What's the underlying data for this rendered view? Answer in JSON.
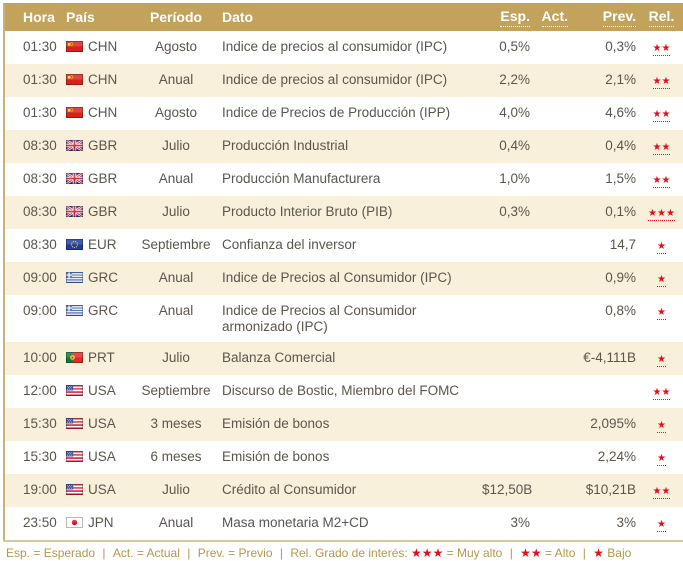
{
  "table": {
    "columns": {
      "hora": "Hora",
      "pais": "País",
      "periodo": "Período",
      "dato": "Dato",
      "esp": "Esp.",
      "act": "Act.",
      "prev": "Prev.",
      "rel": "Rel."
    },
    "rows": [
      {
        "hora": "01:30",
        "pais": "CHN",
        "flag": "china-flag",
        "periodo": "Agosto",
        "dato": "Indice de precios al consumidor (IPC)",
        "esp": "0,5%",
        "act": "",
        "prev": "0,3%",
        "rel": 2
      },
      {
        "hora": "01:30",
        "pais": "CHN",
        "flag": "china-flag",
        "periodo": "Anual",
        "dato": "Indice de precios al consumidor (IPC)",
        "esp": "2,2%",
        "act": "",
        "prev": "2,1%",
        "rel": 2
      },
      {
        "hora": "01:30",
        "pais": "CHN",
        "flag": "china-flag",
        "periodo": "Agosto",
        "dato": "Indice de Precios de Producción (IPP)",
        "esp": "4,0%",
        "act": "",
        "prev": "4,6%",
        "rel": 2
      },
      {
        "hora": "08:30",
        "pais": "GBR",
        "flag": "uk-flag",
        "periodo": "Julio",
        "dato": "Producción Industrial",
        "esp": "0,4%",
        "act": "",
        "prev": "0,4%",
        "rel": 2
      },
      {
        "hora": "08:30",
        "pais": "GBR",
        "flag": "uk-flag",
        "periodo": "Anual",
        "dato": "Producción Manufacturera",
        "esp": "1,0%",
        "act": "",
        "prev": "1,5%",
        "rel": 2
      },
      {
        "hora": "08:30",
        "pais": "GBR",
        "flag": "uk-flag",
        "periodo": "Julio",
        "dato": "Producto Interior Bruto (PIB)",
        "esp": "0,3%",
        "act": "",
        "prev": "0,1%",
        "rel": 3
      },
      {
        "hora": "08:30",
        "pais": "EUR",
        "flag": "eu-flag",
        "periodo": "Septiembre",
        "dato": "Confianza del inversor",
        "esp": "",
        "act": "",
        "prev": "14,7",
        "rel": 1
      },
      {
        "hora": "09:00",
        "pais": "GRC",
        "flag": "greece-flag",
        "periodo": "Anual",
        "dato": "Indice de Precios al Consumidor (IPC)",
        "esp": "",
        "act": "",
        "prev": "0,9%",
        "rel": 1
      },
      {
        "hora": "09:00",
        "pais": "GRC",
        "flag": "greece-flag",
        "periodo": "Anual",
        "dato": "Indice de Precios al Consumidor armonizado (IPC)",
        "esp": "",
        "act": "",
        "prev": "0,8%",
        "rel": 1
      },
      {
        "hora": "10:00",
        "pais": "PRT",
        "flag": "portugal-flag",
        "periodo": "Julio",
        "dato": "Balanza Comercial",
        "esp": "",
        "act": "",
        "prev": "€-4,111B",
        "rel": 1
      },
      {
        "hora": "12:00",
        "pais": "USA",
        "flag": "usa-flag",
        "periodo": "Septiembre",
        "dato": "Discurso de Bostic, Miembro del FOMC",
        "esp": "",
        "act": "",
        "prev": "",
        "rel": 2
      },
      {
        "hora": "15:30",
        "pais": "USA",
        "flag": "usa-flag",
        "periodo": "3 meses",
        "dato": "Emisión de bonos",
        "esp": "",
        "act": "",
        "prev": "2,095%",
        "rel": 1
      },
      {
        "hora": "15:30",
        "pais": "USA",
        "flag": "usa-flag",
        "periodo": "6 meses",
        "dato": "Emisión de bonos",
        "esp": "",
        "act": "",
        "prev": "2,24%",
        "rel": 1
      },
      {
        "hora": "19:00",
        "pais": "USA",
        "flag": "usa-flag",
        "periodo": "Julio",
        "dato": "Crédito al Consumidor",
        "esp": "$12,50B",
        "act": "",
        "prev": "$10,21B",
        "rel": 2
      },
      {
        "hora": "23:50",
        "pais": "JPN",
        "flag": "japan-flag",
        "periodo": "Anual",
        "dato": "Masa monetaria M2+CD",
        "esp": "3%",
        "act": "",
        "prev": "3%",
        "rel": 1
      }
    ]
  },
  "legend": {
    "separator": "|",
    "items": [
      "Esp. = Esperado",
      "Act. = Actual",
      "Prev. = Previo"
    ],
    "rel_label": "Rel. Grado de interés:",
    "levels": [
      {
        "stars": 3,
        "text": "= Muy alto"
      },
      {
        "stars": 2,
        "text": "= Alto"
      },
      {
        "stars": 1,
        "text": "Bajo"
      }
    ]
  },
  "colors": {
    "header_bg": "#c3a35c",
    "row_alt_bg": "#f9f0dc",
    "star_red": "#e3101c",
    "text": "#5c554b",
    "legend_gold": "#b5974e",
    "border_tan": "#c9b27a"
  }
}
